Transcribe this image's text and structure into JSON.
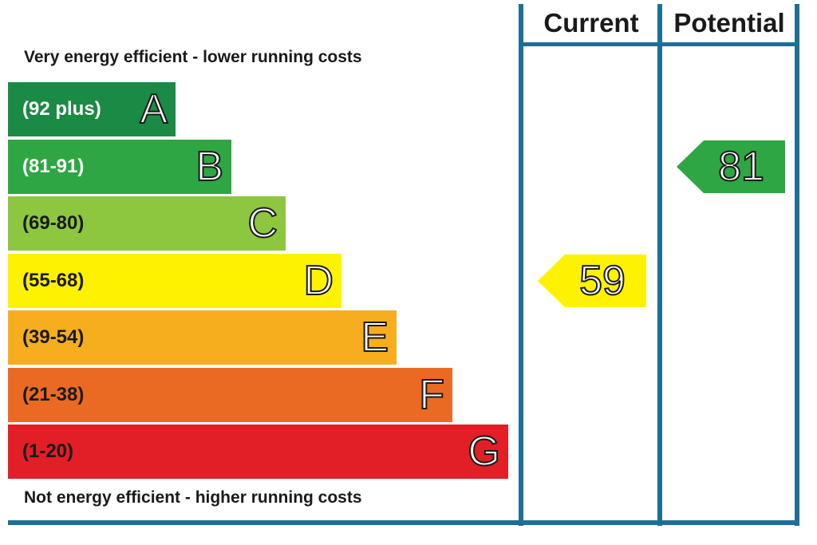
{
  "chart_data": {
    "type": "bar",
    "caption_top": "Very energy efficient - lower running costs",
    "caption_bottom": "Not energy efficient - higher running costs",
    "columns": {
      "current": "Current",
      "potential": "Potential"
    },
    "bands": [
      {
        "letter": "A",
        "range": "(92 plus)",
        "min": 92,
        "max": 100,
        "color": "#1b8a45"
      },
      {
        "letter": "B",
        "range": "(81-91)",
        "min": 81,
        "max": 91,
        "color": "#2ea643"
      },
      {
        "letter": "C",
        "range": "(69-80)",
        "min": 69,
        "max": 80,
        "color": "#8dc63f"
      },
      {
        "letter": "D",
        "range": "(55-68)",
        "min": 55,
        "max": 68,
        "color": "#fff200"
      },
      {
        "letter": "E",
        "range": "(39-54)",
        "min": 39,
        "max": 54,
        "color": "#f6ae1f"
      },
      {
        "letter": "F",
        "range": "(21-38)",
        "min": 21,
        "max": 38,
        "color": "#eb6a23"
      },
      {
        "letter": "G",
        "range": "(1-20)",
        "min": 1,
        "max": 20,
        "color": "#e21e26"
      }
    ],
    "current": {
      "value": 59,
      "band": "D",
      "color": "#fff200"
    },
    "potential": {
      "value": 81,
      "band": "B",
      "color": "#2ea643"
    }
  }
}
